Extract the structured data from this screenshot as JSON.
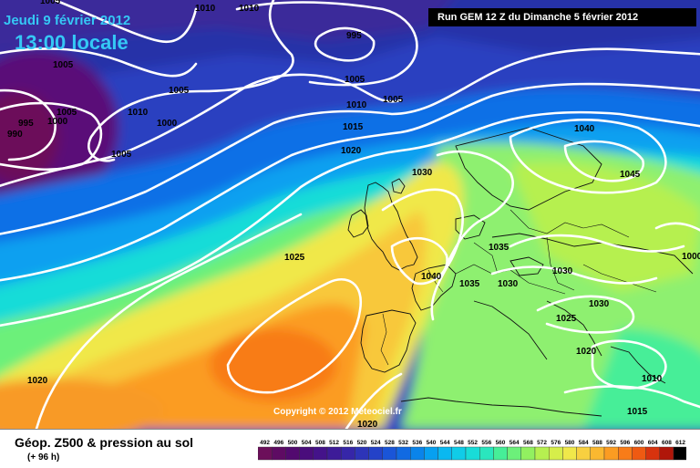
{
  "header": {
    "date_line": "Jeudi 9 février 2012",
    "time_line": "13:00 locale",
    "run_info": "Run GEM 12 Z du Dimanche 5 février 2012"
  },
  "footer": {
    "product_title": "Géop. Z500 & pression au sol",
    "lead_time": "(+ 96 h)",
    "copyright": "Copyright © 2012 Meteociel.fr"
  },
  "legend": {
    "values": [
      "492",
      "496",
      "500",
      "504",
      "508",
      "512",
      "516",
      "520",
      "524",
      "528",
      "532",
      "536",
      "540",
      "544",
      "548",
      "552",
      "556",
      "560",
      "564",
      "568",
      "572",
      "576",
      "580",
      "584",
      "588",
      "592",
      "596",
      "600",
      "604",
      "608",
      "612"
    ],
    "colors": [
      "#6c0f5a",
      "#5e0b63",
      "#520a6f",
      "#4a0d7c",
      "#44138a",
      "#3d1b98",
      "#3626a8",
      "#2d34b8",
      "#2442c8",
      "#1a55d8",
      "#116ae2",
      "#0a84ea",
      "#07a0f0",
      "#0ab8f0",
      "#10cce8",
      "#18dcd8",
      "#2ae6be",
      "#46ee98",
      "#6cf07a",
      "#92f060",
      "#b6f050",
      "#d6ee4a",
      "#f0e84a",
      "#f8d040",
      "#fab830",
      "#fb9c22",
      "#f87c18",
      "#ef5a12",
      "#d8330e",
      "#b0160a",
      "#000000"
    ]
  },
  "pressure_labels": [
    {
      "id": "p1",
      "text": "1005"
    },
    {
      "id": "p2",
      "text": "1010"
    },
    {
      "id": "p3",
      "text": "995"
    },
    {
      "id": "p4",
      "text": "1005"
    },
    {
      "id": "p5",
      "text": "1005"
    },
    {
      "id": "p6",
      "text": "1000"
    },
    {
      "id": "p7",
      "text": "995"
    },
    {
      "id": "p8",
      "text": "990"
    },
    {
      "id": "p9",
      "text": "1010"
    },
    {
      "id": "p10",
      "text": "1005"
    },
    {
      "id": "p11",
      "text": "1000"
    },
    {
      "id": "p12",
      "text": "1005"
    },
    {
      "id": "p13",
      "text": "1005"
    },
    {
      "id": "p14",
      "text": "1010"
    },
    {
      "id": "p15",
      "text": "1005"
    },
    {
      "id": "p16",
      "text": "1015"
    },
    {
      "id": "p17",
      "text": "1020"
    },
    {
      "id": "p18",
      "text": "1030"
    },
    {
      "id": "p19",
      "text": "1040"
    },
    {
      "id": "p20",
      "text": "1045"
    },
    {
      "id": "p21",
      "text": "1025"
    },
    {
      "id": "p22",
      "text": "1035"
    },
    {
      "id": "p23",
      "text": "1030"
    },
    {
      "id": "p24",
      "text": "1040"
    },
    {
      "id": "p25",
      "text": "1035"
    },
    {
      "id": "p26",
      "text": "1030"
    },
    {
      "id": "p27",
      "text": "1030"
    },
    {
      "id": "p28",
      "text": "1025"
    },
    {
      "id": "p29",
      "text": "1020"
    },
    {
      "id": "p30",
      "text": "1010"
    },
    {
      "id": "p31",
      "text": "1015"
    },
    {
      "id": "p32",
      "text": "1020"
    },
    {
      "id": "p33",
      "text": "1020"
    },
    {
      "id": "p34",
      "text": "1000"
    }
  ]
}
